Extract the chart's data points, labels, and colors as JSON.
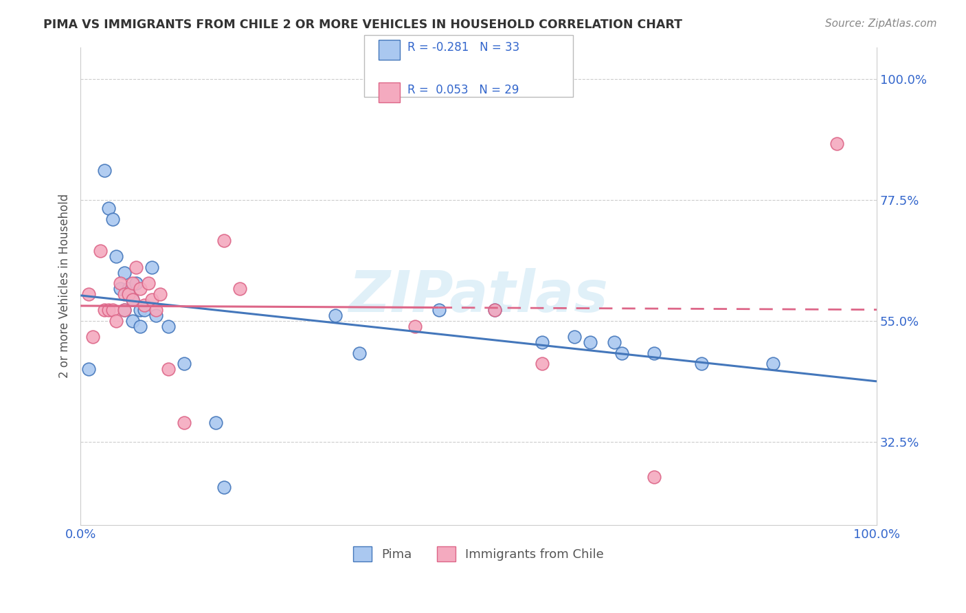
{
  "title": "PIMA VS IMMIGRANTS FROM CHILE 2 OR MORE VEHICLES IN HOUSEHOLD CORRELATION CHART",
  "source": "Source: ZipAtlas.com",
  "ylabel": "2 or more Vehicles in Household",
  "yticks": [
    "32.5%",
    "55.0%",
    "77.5%",
    "100.0%"
  ],
  "ytick_values": [
    0.325,
    0.55,
    0.775,
    1.0
  ],
  "xlim": [
    0.0,
    1.0
  ],
  "ylim": [
    0.17,
    1.06
  ],
  "legend_label1": "Pima",
  "legend_label2": "Immigrants from Chile",
  "R1": -0.281,
  "N1": 33,
  "R2": 0.053,
  "N2": 29,
  "color_blue": "#aac8f0",
  "color_pink": "#f4aabf",
  "line_color_blue": "#4477bb",
  "line_color_pink": "#dd6688",
  "watermark": "ZIPatlas",
  "pima_x": [
    0.01,
    0.03,
    0.035,
    0.04,
    0.045,
    0.05,
    0.055,
    0.055,
    0.06,
    0.065,
    0.065,
    0.07,
    0.075,
    0.075,
    0.08,
    0.09,
    0.095,
    0.11,
    0.13,
    0.17,
    0.18,
    0.32,
    0.35,
    0.45,
    0.52,
    0.58,
    0.62,
    0.64,
    0.67,
    0.68,
    0.72,
    0.78,
    0.87
  ],
  "pima_y": [
    0.46,
    0.83,
    0.76,
    0.74,
    0.67,
    0.61,
    0.64,
    0.57,
    0.61,
    0.59,
    0.55,
    0.62,
    0.57,
    0.54,
    0.57,
    0.65,
    0.56,
    0.54,
    0.47,
    0.36,
    0.24,
    0.56,
    0.49,
    0.57,
    0.57,
    0.51,
    0.52,
    0.51,
    0.51,
    0.49,
    0.49,
    0.47,
    0.47
  ],
  "chile_x": [
    0.01,
    0.015,
    0.025,
    0.03,
    0.035,
    0.04,
    0.045,
    0.05,
    0.055,
    0.055,
    0.06,
    0.065,
    0.065,
    0.07,
    0.075,
    0.08,
    0.085,
    0.09,
    0.095,
    0.1,
    0.11,
    0.13,
    0.18,
    0.2,
    0.42,
    0.52,
    0.58,
    0.72,
    0.95
  ],
  "chile_y": [
    0.6,
    0.52,
    0.68,
    0.57,
    0.57,
    0.57,
    0.55,
    0.62,
    0.6,
    0.57,
    0.6,
    0.62,
    0.59,
    0.65,
    0.61,
    0.58,
    0.62,
    0.59,
    0.57,
    0.6,
    0.46,
    0.36,
    0.7,
    0.61,
    0.54,
    0.57,
    0.47,
    0.26,
    0.88
  ]
}
